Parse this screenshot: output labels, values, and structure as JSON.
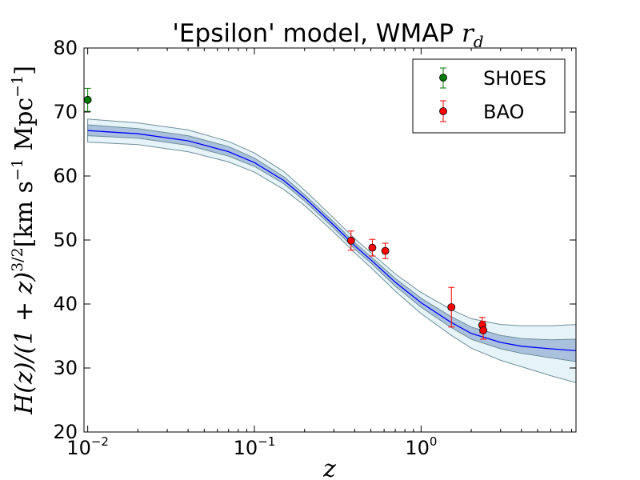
{
  "chart_data": {
    "type": "scatter",
    "title": "'Epsilon' model, WMAP r_d",
    "title_parts": {
      "text": "'Epsilon' model, WMAP ",
      "math_main": "r",
      "math_sub": "d"
    },
    "xlabel": "z",
    "ylabel": "H(z)/(1+z)^{3/2}[km s^{-1} Mpc^{-1}]",
    "ylabel_parts": {
      "lhs": "H(z)/(1 + z)",
      "lhs_sup": "3/2",
      "unit_open": "[km s",
      "unit_sup1": "−1",
      "unit_mid": " Mpc",
      "unit_sup2": "−1",
      "unit_close": "]"
    },
    "xscale": "log",
    "xlim": [
      0.0095,
      8.5
    ],
    "ylim": [
      20,
      80
    ],
    "x_ticks": [
      {
        "base": "10",
        "exp": "−2",
        "value": 0.01
      },
      {
        "base": "10",
        "exp": "−1",
        "value": 0.1
      },
      {
        "base": "10",
        "exp": "0",
        "value": 1
      }
    ],
    "y_ticks": [
      "20",
      "30",
      "40",
      "50",
      "60",
      "70",
      "80"
    ],
    "legend": {
      "position": "top-right",
      "entries": [
        {
          "label": "SH0ES",
          "color": "#007a00"
        },
        {
          "label": "BAO",
          "color": "#ff0000"
        }
      ]
    },
    "series": [
      {
        "name": "SH0ES",
        "color": "#007a00",
        "points": [
          {
            "x": 0.01,
            "y": 71.9,
            "yerr": 1.8
          }
        ]
      },
      {
        "name": "BAO",
        "color": "#ff0000",
        "points": [
          {
            "x": 0.38,
            "y": 49.9,
            "yerr": 1.5
          },
          {
            "x": 0.51,
            "y": 48.8,
            "yerr": 1.3
          },
          {
            "x": 0.61,
            "y": 48.3,
            "yerr": 1.2
          },
          {
            "x": 1.52,
            "y": 39.5,
            "yerr": 3.1
          },
          {
            "x": 2.33,
            "y": 36.7,
            "yerr": 1.2
          },
          {
            "x": 2.36,
            "y": 35.9,
            "yerr": 1.4
          }
        ]
      }
    ],
    "model_curve": {
      "name": "best fit",
      "color": "#0000ff",
      "x": [
        0.01,
        0.02,
        0.04,
        0.07,
        0.1,
        0.15,
        0.2,
        0.3,
        0.4,
        0.5,
        0.7,
        1.0,
        1.5,
        2.0,
        3.0,
        4.0,
        6.0,
        8.5
      ],
      "y": [
        67.1,
        66.6,
        65.5,
        63.8,
        62.1,
        59.3,
        56.6,
        52.3,
        49.1,
        46.9,
        43.4,
        40.2,
        37.2,
        35.4,
        34.0,
        33.4,
        33.0,
        32.7
      ],
      "band_1sigma": {
        "color": "#1f4fa0",
        "low": [
          66.3,
          65.9,
          64.8,
          63.1,
          61.5,
          58.8,
          56.1,
          51.8,
          48.6,
          46.4,
          42.8,
          39.5,
          36.4,
          34.5,
          33.0,
          32.3,
          31.6,
          31.0
        ],
        "high": [
          68.0,
          67.4,
          66.3,
          64.6,
          62.8,
          59.9,
          57.1,
          52.8,
          49.6,
          47.4,
          44.0,
          40.9,
          38.1,
          36.4,
          35.1,
          34.6,
          34.4,
          34.5
        ]
      },
      "band_2sigma": {
        "color": "#b8dcec",
        "low": [
          65.3,
          64.9,
          63.8,
          62.2,
          60.6,
          57.9,
          55.4,
          51.2,
          48.0,
          45.7,
          42.0,
          38.5,
          35.2,
          33.1,
          31.2,
          30.2,
          28.8,
          27.7
        ],
        "high": [
          68.9,
          68.3,
          67.2,
          65.4,
          63.6,
          60.7,
          57.8,
          53.4,
          50.2,
          48.0,
          44.7,
          41.8,
          39.2,
          37.7,
          36.8,
          36.6,
          36.6,
          36.8
        ]
      }
    }
  }
}
